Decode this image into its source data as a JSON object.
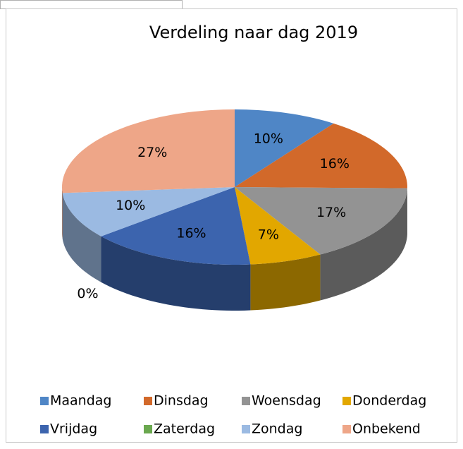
{
  "chart_data": {
    "type": "pie3d",
    "title": "Verdeling naar dag 2019",
    "categories": [
      "Maandag",
      "Dinsdag",
      "Woensdag",
      "Donderdag",
      "Vrijdag",
      "Zaterdag",
      "Zondag",
      "Onbekend"
    ],
    "values": [
      10,
      16,
      17,
      7,
      16,
      0,
      10,
      27
    ],
    "value_labels": [
      "10%",
      "16%",
      "17%",
      "7%",
      "16%",
      "0%",
      "10%",
      "27%"
    ],
    "colors": [
      "#4f86c6",
      "#d2692a",
      "#939393",
      "#e2a700",
      "#3c64ae",
      "#6aa84f",
      "#9bbae2",
      "#eea688"
    ],
    "legend": "bottom"
  }
}
